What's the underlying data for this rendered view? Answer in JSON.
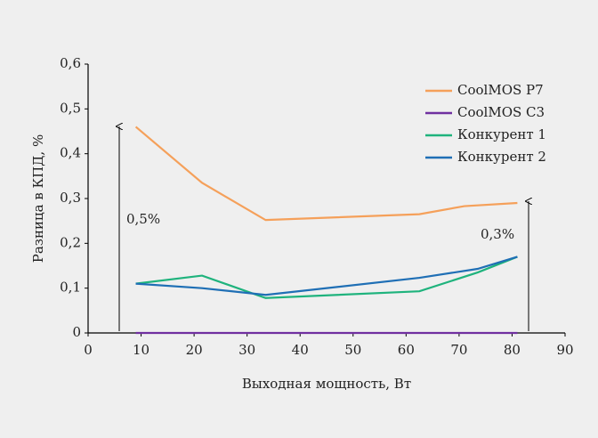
{
  "chart_data": {
    "type": "line",
    "x_label": "Выходная мощность, Вт",
    "y_label": "Разница в КПД, %",
    "xlim": [
      0,
      90
    ],
    "xticks": [
      0,
      10,
      20,
      30,
      40,
      50,
      60,
      70,
      80,
      90
    ],
    "ylim": [
      0,
      0.6
    ],
    "yticks": [
      0,
      {
        "value": 0.1,
        "label": "0,1"
      },
      {
        "value": 0.2,
        "label": "0,2"
      },
      {
        "value": 0.3,
        "label": "0,3"
      },
      {
        "value": 0.4,
        "label": "0,4"
      },
      {
        "value": 0.5,
        "label": "0,5"
      },
      {
        "value": 0.6,
        "label": "0,6"
      }
    ],
    "grid": false,
    "legend": "upper right",
    "series": [
      {
        "name": "CoolMOS P7",
        "color": "#f5a05a",
        "x": [
          9,
          21.5,
          33.5,
          62.5,
          71,
          81
        ],
        "values": [
          0.46,
          0.335,
          0.252,
          0.265,
          0.283,
          0.29
        ]
      },
      {
        "name": "CoolMOS C3",
        "color": "#7030a0",
        "x": [
          9,
          21.5,
          33.5,
          62.5,
          73.5,
          81
        ],
        "values": [
          0,
          0,
          0,
          0,
          0,
          0
        ]
      },
      {
        "name": "Конкурент 1",
        "color": "#1fb37d",
        "x": [
          9,
          21.5,
          33.5,
          62.5,
          73.5,
          81
        ],
        "values": [
          0.11,
          0.128,
          0.078,
          0.093,
          0.135,
          0.17
        ]
      },
      {
        "name": "Конкурент 2",
        "color": "#1f6fb5",
        "x": [
          9,
          21.5,
          33.5,
          62.5,
          73.5,
          81
        ],
        "values": [
          0.11,
          0.1,
          0.085,
          0.123,
          0.143,
          0.17
        ]
      }
    ],
    "annotations": [
      {
        "text": "0,5%"
      },
      {
        "text": "0,3%"
      }
    ]
  }
}
